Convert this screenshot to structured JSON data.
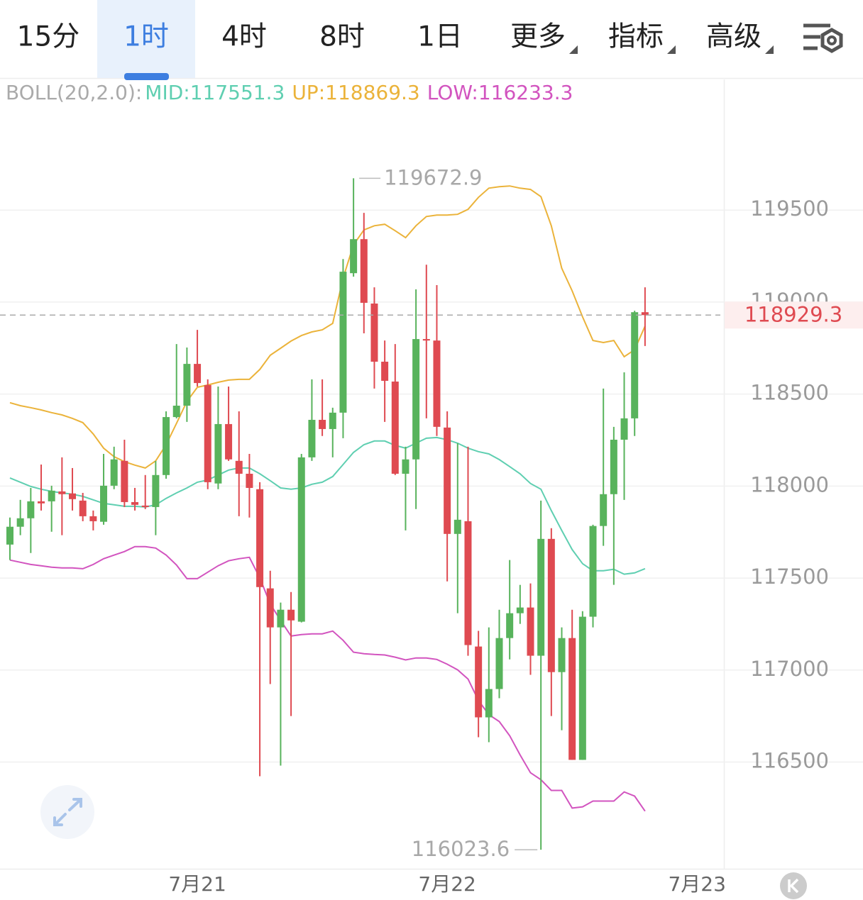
{
  "tabs": [
    {
      "label": "15分"
    },
    {
      "label": "1时",
      "selected": true
    },
    {
      "label": "4时"
    },
    {
      "label": "8时"
    },
    {
      "label": "1日"
    },
    {
      "label": "更多",
      "dropdown": true
    },
    {
      "label": "指标",
      "dropdown": true
    },
    {
      "label": "高级",
      "dropdown": true
    }
  ],
  "chart_data": {
    "type": "candlestick",
    "indicator": "BOLL(20,2.0):",
    "categories": [
      null,
      null,
      null,
      null,
      null,
      null,
      null,
      null,
      null,
      null,
      null,
      null,
      null,
      null,
      null,
      null,
      null,
      null,
      "7月21",
      null,
      null,
      null,
      null,
      null,
      null,
      null,
      null,
      null,
      null,
      null,
      null,
      null,
      null,
      null,
      null,
      null,
      null,
      null,
      null,
      null,
      null,
      null,
      "7月22",
      null,
      null,
      null,
      null,
      null,
      null,
      null,
      null,
      null,
      null,
      null,
      null,
      null,
      null,
      null,
      null,
      null,
      null,
      null,
      null,
      null,
      null,
      null,
      "7月23"
    ],
    "open": [
      117682,
      117779,
      117825,
      117917,
      117917,
      117971,
      117960,
      117921,
      117836,
      117806,
      118002,
      118137,
      117913,
      117894,
      117886,
      118060,
      118375,
      118437,
      118664,
      118549,
      118014,
      118337,
      118137,
      118067,
      117983,
      117444,
      117232,
      117328,
      117263,
      118156,
      118360,
      118310,
      118399,
      119157,
      119342,
      118992,
      118676,
      118568,
      118067,
      118145,
      118799,
      118791,
      118318,
      117740,
      117809,
      117128,
      116743,
      116897,
      117174,
      117309,
      117340,
      117078,
      117713,
      116989,
      117174,
      116512,
      117290,
      117783,
      117956,
      118252,
      118368,
      118945,
      null,
      null,
      null,
      null,
      null
    ],
    "high": [
      117829,
      117925,
      117990,
      118117,
      118002,
      118156,
      118098,
      117963,
      117867,
      118175,
      118214,
      118252,
      117990,
      118060,
      118137,
      118406,
      118772,
      118753,
      118849,
      118580,
      118541,
      118541,
      118406,
      118175,
      118021,
      117540,
      117367,
      117424,
      118175,
      118580,
      118580,
      118426,
      119234,
      119672.9,
      119485,
      119080,
      118791,
      118772,
      118214,
      119069,
      119203,
      119092,
      118406,
      118233,
      118214,
      117213,
      117232,
      117328,
      117598,
      117463,
      117471,
      117921,
      117771,
      117232,
      117328,
      117320,
      117790,
      118530,
      118322,
      118618,
      118953,
      119080,
      null,
      null,
      null,
      null,
      null
    ],
    "low": [
      117598,
      117733,
      117636,
      117867,
      117752,
      117733,
      117867,
      117809,
      117759,
      117790,
      117983,
      117886,
      117867,
      117875,
      117733,
      118040,
      118368,
      118349,
      118541,
      117983,
      117983,
      118137,
      117836,
      117829,
      116423,
      116924,
      116481,
      116750,
      117259,
      118137,
      118272,
      118156,
      118260,
      119138,
      118830,
      118530,
      118349,
      118060,
      117759,
      117875,
      118368,
      118272,
      117482,
      117309,
      117078,
      116635,
      116608,
      116847,
      117058,
      117251,
      116974,
      116023.6,
      116750,
      116673,
      116512,
      116512,
      117232,
      117675,
      117463,
      117925,
      118272,
      118761,
      null,
      null,
      null,
      null,
      null
    ],
    "close": [
      117779,
      117825,
      117917,
      117906,
      117975,
      117956,
      117929,
      117836,
      117809,
      118002,
      118145,
      117913,
      117898,
      117886,
      118060,
      118375,
      118437,
      118664,
      118560,
      118021,
      118337,
      118145,
      118067,
      117990,
      117451,
      117232,
      117328,
      117270,
      118156,
      118360,
      118310,
      118399,
      119165,
      119342,
      118996,
      118676,
      118572,
      118067,
      118145,
      118799,
      118791,
      118322,
      117740,
      117817,
      117136,
      116743,
      116897,
      117174,
      117309,
      117340,
      117078,
      117713,
      116989,
      117174,
      116512,
      117290,
      117783,
      117956,
      118252,
      118368,
      118945,
      118929.3,
      null,
      null,
      null,
      null,
      null
    ],
    "up_color": "#58b35c",
    "down_color": "#df4a51",
    "series": [
      {
        "name": "MID:117551.3",
        "color": "#5fcfb1",
        "values": [
          118044,
          118021,
          117998,
          117983,
          117971,
          117963,
          117956,
          117944,
          117925,
          117906,
          117898,
          117890,
          117890,
          117886,
          117898,
          117933,
          117963,
          117990,
          118021,
          118033,
          118060,
          118087,
          118098,
          118098,
          118067,
          118029,
          117990,
          117983,
          117990,
          118010,
          118021,
          118052,
          118117,
          118183,
          118225,
          118245,
          118245,
          118221,
          118206,
          118233,
          118260,
          118264,
          118252,
          118233,
          118206,
          118187,
          118175,
          118144,
          118106,
          118067,
          118014,
          117983,
          117867,
          117759,
          117655,
          117578,
          117540,
          117540,
          117548,
          117521,
          117528,
          117551.3,
          null,
          null,
          null,
          null,
          null
        ]
      },
      {
        "name": "UP:118869.3",
        "color": "#ebb33a",
        "values": [
          118453,
          118437,
          118426,
          118414,
          118399,
          118387,
          118368,
          118345,
          118283,
          118206,
          118160,
          118133,
          118114,
          118098,
          118137,
          118225,
          118341,
          118460,
          118537,
          118549,
          118564,
          118576,
          118580,
          118580,
          118634,
          118711,
          118749,
          118788,
          118818,
          118838,
          118849,
          118884,
          119130,
          119311,
          119392,
          119415,
          119423,
          119388,
          119350,
          119415,
          119465,
          119473,
          119473,
          119477,
          119504,
          119569,
          119619,
          119627,
          119631,
          119619,
          119612,
          119573,
          119415,
          119184,
          119061,
          118919,
          118791,
          118780,
          118791,
          118703,
          118741,
          118869.3,
          null,
          null,
          null,
          null,
          null
        ]
      },
      {
        "name": "LOW:116233.3",
        "color": "#d254bf",
        "values": [
          117598,
          117586,
          117574,
          117567,
          117559,
          117555,
          117555,
          117551,
          117574,
          117605,
          117625,
          117644,
          117671,
          117671,
          117663,
          117625,
          117571,
          117497,
          117497,
          117532,
          117567,
          117594,
          117605,
          117613,
          117501,
          117359,
          117270,
          117185,
          117193,
          117197,
          117197,
          117212,
          117162,
          117097,
          117089,
          117085,
          117082,
          117070,
          117055,
          117066,
          117066,
          117058,
          117032,
          117001,
          116951,
          116835,
          116758,
          116720,
          116643,
          116539,
          116442,
          116404,
          116346,
          116346,
          116250,
          116257,
          116288,
          116288,
          116288,
          116338,
          116315,
          116233.3,
          null,
          null,
          null,
          null,
          null
        ]
      }
    ],
    "ylim": [
      115920,
      120210
    ],
    "yticks": [
      116500,
      117000,
      117500,
      118000,
      118500,
      119000,
      119500
    ],
    "grid": true
  }
}
